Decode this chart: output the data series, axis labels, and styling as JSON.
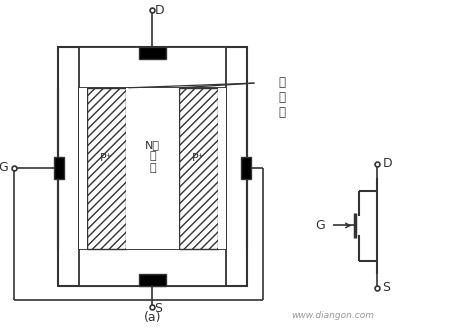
{
  "bg_color": "#ffffff",
  "line_color": "#333333",
  "watermark": "www.diangon.com",
  "label_D_left": "D",
  "label_S_left": "S",
  "label_G_left": "G",
  "label_N": "N型\n沟\n道",
  "label_P_left": "P⁺",
  "label_P_right": "P⁺",
  "label_depletion": "耗\n尽\n层",
  "label_a": "(a)",
  "label_D_right": "D",
  "label_S_right": "S",
  "label_G_right": "G"
}
